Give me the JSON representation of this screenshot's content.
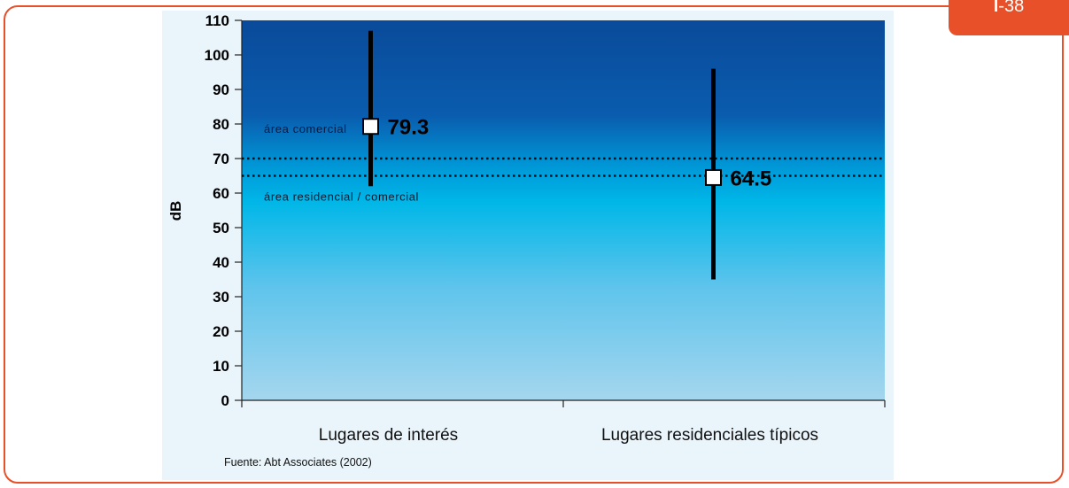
{
  "badge": {
    "prefix": "I",
    "number": "-38"
  },
  "source": "Fuente: Abt Associates (2002)",
  "colors": {
    "accent": "#e8502a",
    "plot_top": "#0a4a9a",
    "plot_mid": "#00b7e8",
    "plot_bottom": "#a5d6ee"
  },
  "chart_data": {
    "type": "scatter",
    "ylabel": "dB",
    "xlabel": "",
    "ylim": [
      0,
      110
    ],
    "yticks": [
      0,
      10,
      20,
      30,
      40,
      50,
      60,
      70,
      80,
      90,
      100,
      110
    ],
    "categories": [
      "Lugares de interés",
      "Lugares residenciales típicos"
    ],
    "series": [
      {
        "points": [
          {
            "category": "Lugares de interés",
            "value": 79.3,
            "low": 62,
            "high": 107,
            "label": "79.3"
          },
          {
            "category": "Lugares residenciales típicos",
            "value": 64.5,
            "low": 35,
            "high": 96,
            "label": "64.5"
          }
        ]
      }
    ],
    "reference_lines": [
      {
        "value": 70,
        "label": "área comercial"
      },
      {
        "value": 65,
        "label": "área residencial / comercial"
      }
    ],
    "grid": false,
    "legend": "none"
  }
}
